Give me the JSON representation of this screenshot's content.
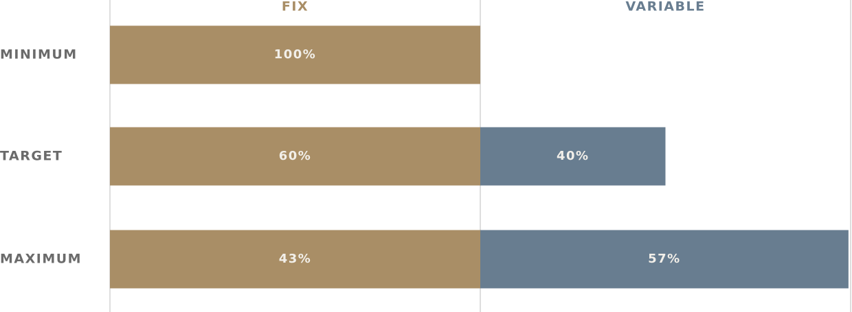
{
  "chart_data": {
    "type": "bar",
    "categories": [
      "MINIMUM",
      "TARGET",
      "MAXIMUM"
    ],
    "series": [
      {
        "name": "FIX",
        "color": "#a98e66",
        "values": [
          100,
          60,
          43
        ],
        "value_labels": [
          "100%",
          "60%",
          "43%"
        ]
      },
      {
        "name": "VARIABLE",
        "color": "#687d90",
        "values": [
          null,
          40,
          57
        ],
        "value_labels": [
          null,
          "40%",
          "57%"
        ]
      }
    ]
  }
}
